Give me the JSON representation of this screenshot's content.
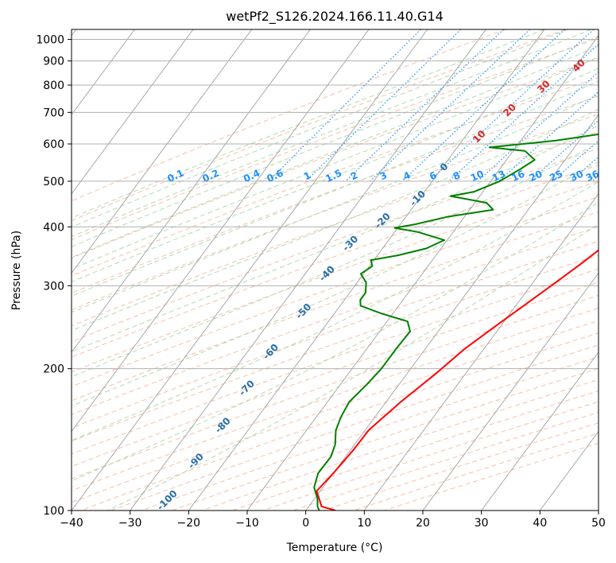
{
  "chart_data": {
    "type": "line",
    "title": "wetPf2_S126.2024.166.11.40.G14",
    "xlabel": "Temperature (°C)",
    "ylabel": "Pressure (hPa)",
    "xlim": [
      -40,
      50
    ],
    "ylim": [
      1050,
      100
    ],
    "y_scale": "log",
    "grid": true,
    "x_ticks": [
      -40,
      -30,
      -20,
      -10,
      0,
      10,
      20,
      30,
      40,
      50
    ],
    "x_tick_labels": [
      "−40",
      "−30",
      "−20",
      "−10",
      "0",
      "10",
      "20",
      "30",
      "40",
      "50"
    ],
    "y_ticks": [
      1000,
      900,
      800,
      700,
      600,
      500,
      400,
      300,
      200,
      100
    ],
    "y_tick_labels": [
      "1000",
      "900",
      "800",
      "700",
      "600",
      "500",
      "400",
      "300",
      "200",
      "100"
    ],
    "colors": {
      "temperature": "#ff0000",
      "dewpoint": "#008000",
      "isotherm": "#a0a0a0",
      "dry_adiabat": "#f4a582",
      "moist_adiabat": "#a6d8a6",
      "mixing_ratio": "#1e90ff"
    },
    "series": [
      {
        "color": "#ff0000",
        "points": [
          [
            28.9,
            1000
          ],
          [
            27,
            975
          ],
          [
            25.8,
            935
          ],
          [
            24.8,
            875
          ],
          [
            23.8,
            820
          ],
          [
            23.2,
            775
          ],
          [
            22.6,
            740
          ],
          [
            22.4,
            700
          ],
          [
            22.0,
            670
          ],
          [
            21.8,
            640
          ],
          [
            23.2,
            610
          ],
          [
            24.8,
            580
          ],
          [
            24.5,
            550
          ],
          [
            22.8,
            510
          ],
          [
            21.5,
            480
          ],
          [
            20,
            440
          ],
          [
            19.5,
            420
          ],
          [
            19.2,
            400
          ],
          [
            17.8,
            370
          ],
          [
            15.9,
            335
          ],
          [
            13.9,
            305
          ],
          [
            11.6,
            275
          ],
          [
            9,
            245
          ],
          [
            6.7,
            220
          ],
          [
            4.9,
            195
          ],
          [
            2.5,
            170
          ],
          [
            0.6,
            148
          ],
          [
            0.5,
            135
          ],
          [
            0,
            120
          ],
          [
            -0.6,
            110
          ],
          [
            2.2,
            102
          ],
          [
            5.1,
            100
          ]
        ]
      },
      {
        "color": "#008000",
        "points": [
          [
            21.3,
            1000
          ],
          [
            22,
            960
          ],
          [
            21.3,
            900
          ],
          [
            20.9,
            850
          ],
          [
            21.2,
            800
          ],
          [
            18.2,
            750
          ],
          [
            16.5,
            700
          ],
          [
            10.0,
            670
          ],
          [
            9.5,
            650
          ],
          [
            -4,
            610
          ],
          [
            -14.5,
            590
          ],
          [
            -8,
            580
          ],
          [
            -5.2,
            555
          ],
          [
            -6.5,
            530
          ],
          [
            -8.5,
            500
          ],
          [
            -11.5,
            475
          ],
          [
            -15,
            465
          ],
          [
            -8,
            450
          ],
          [
            -6,
            435
          ],
          [
            -13,
            420
          ],
          [
            -17.5,
            405
          ],
          [
            -20.5,
            398
          ],
          [
            -16,
            390
          ],
          [
            -10.5,
            375
          ],
          [
            -12.5,
            360
          ],
          [
            -16.5,
            348
          ],
          [
            -20.5,
            340
          ],
          [
            -19.5,
            330
          ],
          [
            -20.5,
            318
          ],
          [
            -18.5,
            305
          ],
          [
            -17.3,
            290
          ],
          [
            -17.3,
            280
          ],
          [
            -16.5,
            272
          ],
          [
            -12,
            262
          ],
          [
            -6.5,
            252
          ],
          [
            -4.8,
            240
          ],
          [
            -5,
            220
          ],
          [
            -5,
            200
          ],
          [
            -5.5,
            185
          ],
          [
            -6.3,
            170
          ],
          [
            -5.8,
            158
          ],
          [
            -5,
            148
          ],
          [
            -3.3,
            138
          ],
          [
            -2.5,
            130
          ],
          [
            -2.6,
            120
          ],
          [
            -1.5,
            112
          ],
          [
            0.5,
            106
          ],
          [
            1.5,
            102
          ],
          [
            2.3,
            100
          ]
        ]
      }
    ],
    "isotherm_labels": [
      "-100",
      "-90",
      "-80",
      "-70",
      "-60",
      "-50",
      "-40",
      "-30",
      "-20",
      "-10",
      "0",
      "10",
      "20",
      "30",
      "40"
    ],
    "mixing_ratio_labels": [
      "0.1",
      "0.2",
      "0.4",
      "0.6",
      "1",
      "1.5",
      "2",
      "3",
      "4",
      "6",
      "8",
      "10",
      "13",
      "16",
      "20",
      "25",
      "30",
      "36"
    ]
  }
}
